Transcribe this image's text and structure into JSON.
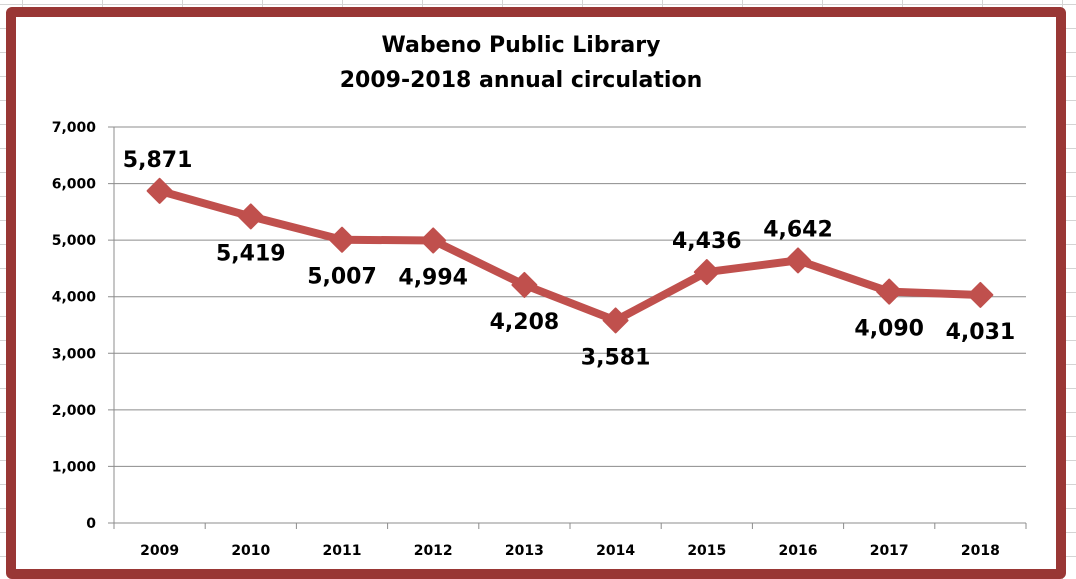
{
  "chart_data": {
    "type": "line",
    "title": "Wabeno Public Library",
    "subtitle": "2009-2018 annual circulation",
    "xlabel": "",
    "ylabel": "",
    "categories": [
      "2009",
      "2010",
      "2011",
      "2012",
      "2013",
      "2014",
      "2015",
      "2016",
      "2017",
      "2018"
    ],
    "series": [
      {
        "name": "Annual circulation",
        "values": [
          5871,
          5419,
          5007,
          4994,
          4208,
          3581,
          4436,
          4642,
          4090,
          4031
        ],
        "labels": [
          "5,871",
          "5,419",
          "5,007",
          "4,994",
          "4,208",
          "3,581",
          "4,436",
          "4,642",
          "4,090",
          "4,031"
        ],
        "label_positions": [
          "above",
          "below",
          "below",
          "below",
          "below",
          "below",
          "above",
          "above",
          "below",
          "below"
        ],
        "color": "#C0504D",
        "marker": "diamond"
      }
    ],
    "ylim": [
      0,
      7000
    ],
    "yticks": [
      0,
      1000,
      2000,
      3000,
      4000,
      5000,
      6000,
      7000
    ],
    "ytick_labels": [
      "0",
      "1,000",
      "2,000",
      "3,000",
      "4,000",
      "5,000",
      "6,000",
      "7,000"
    ],
    "grid": true,
    "legend": "none"
  },
  "colors": {
    "frame_border": "#993735",
    "line": "#C0504D",
    "gridline": "#8c8c8c"
  }
}
